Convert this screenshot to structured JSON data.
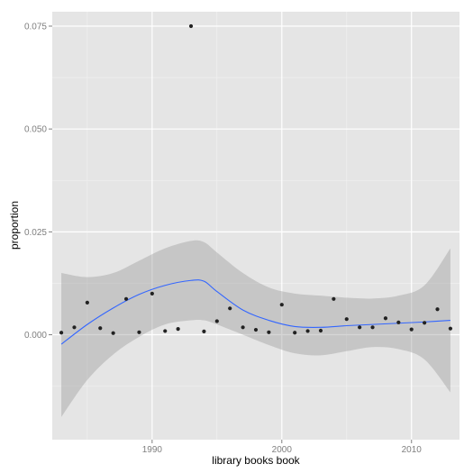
{
  "chart_data": {
    "type": "scatter",
    "xlabel": "library books book",
    "ylabel": "proportion",
    "xlim": [
      1982.3,
      2013.7
    ],
    "ylim": [
      -0.0255,
      0.0785
    ],
    "x_ticks": [
      {
        "value": 1990,
        "label": "1990"
      },
      {
        "value": 2000,
        "label": "2000"
      },
      {
        "value": 2010,
        "label": "2010"
      }
    ],
    "y_ticks": [
      {
        "value": 0.0,
        "label": "0.000"
      },
      {
        "value": 0.025,
        "label": "0.025"
      },
      {
        "value": 0.05,
        "label": "0.050"
      },
      {
        "value": 0.075,
        "label": "0.075"
      }
    ],
    "grid": true,
    "legend": "none",
    "points": [
      [
        1983,
        0.0005
      ],
      [
        1984,
        0.0018
      ],
      [
        1985,
        0.0078
      ],
      [
        1986,
        0.0016
      ],
      [
        1987,
        0.0004
      ],
      [
        1988,
        0.0087
      ],
      [
        1989,
        0.0006
      ],
      [
        1990,
        0.01
      ],
      [
        1991,
        0.0009
      ],
      [
        1992,
        0.0014
      ],
      [
        1993,
        0.075
      ],
      [
        1994,
        0.0008
      ],
      [
        1995,
        0.0033
      ],
      [
        1996,
        0.0064
      ],
      [
        1997,
        0.0018
      ],
      [
        1998,
        0.0012
      ],
      [
        1999,
        0.0006
      ],
      [
        2000,
        0.0073
      ],
      [
        2001,
        0.0005
      ],
      [
        2002,
        0.0009
      ],
      [
        2003,
        0.001
      ],
      [
        2004,
        0.0087
      ],
      [
        2005,
        0.0038
      ],
      [
        2006,
        0.0018
      ],
      [
        2007,
        0.0018
      ],
      [
        2008,
        0.004
      ],
      [
        2009,
        0.003
      ],
      [
        2010,
        0.0013
      ],
      [
        2011,
        0.0029
      ],
      [
        2012,
        0.0062
      ],
      [
        2013,
        0.0015
      ]
    ],
    "smooth": {
      "x": [
        1983,
        1985,
        1987,
        1989,
        1991,
        1993,
        1994,
        1995,
        1997,
        1999,
        2001,
        2003,
        2005,
        2007,
        2009,
        2011,
        2013
      ],
      "y": [
        -0.0023,
        0.0025,
        0.0065,
        0.0098,
        0.012,
        0.0132,
        0.013,
        0.0105,
        0.006,
        0.0035,
        0.002,
        0.0018,
        0.0022,
        0.0025,
        0.0028,
        0.0031,
        0.0035
      ],
      "upper": [
        0.015,
        0.014,
        0.015,
        0.018,
        0.021,
        0.0228,
        0.0225,
        0.02,
        0.015,
        0.0115,
        0.01,
        0.0095,
        0.009,
        0.0088,
        0.0095,
        0.012,
        0.021
      ],
      "lower": [
        -0.02,
        -0.011,
        -0.0048,
        -0.0005,
        0.0025,
        0.0035,
        0.0035,
        0.0025,
        0.0,
        -0.0025,
        -0.0045,
        -0.005,
        -0.004,
        -0.003,
        -0.0035,
        -0.006,
        -0.014
      ]
    },
    "colors": {
      "panel": "#e5e5e5",
      "grid_major": "#ffffff",
      "grid_minor": "#f2f2f2",
      "band": "#999999",
      "line": "#3366ff",
      "point": "#222222"
    }
  }
}
